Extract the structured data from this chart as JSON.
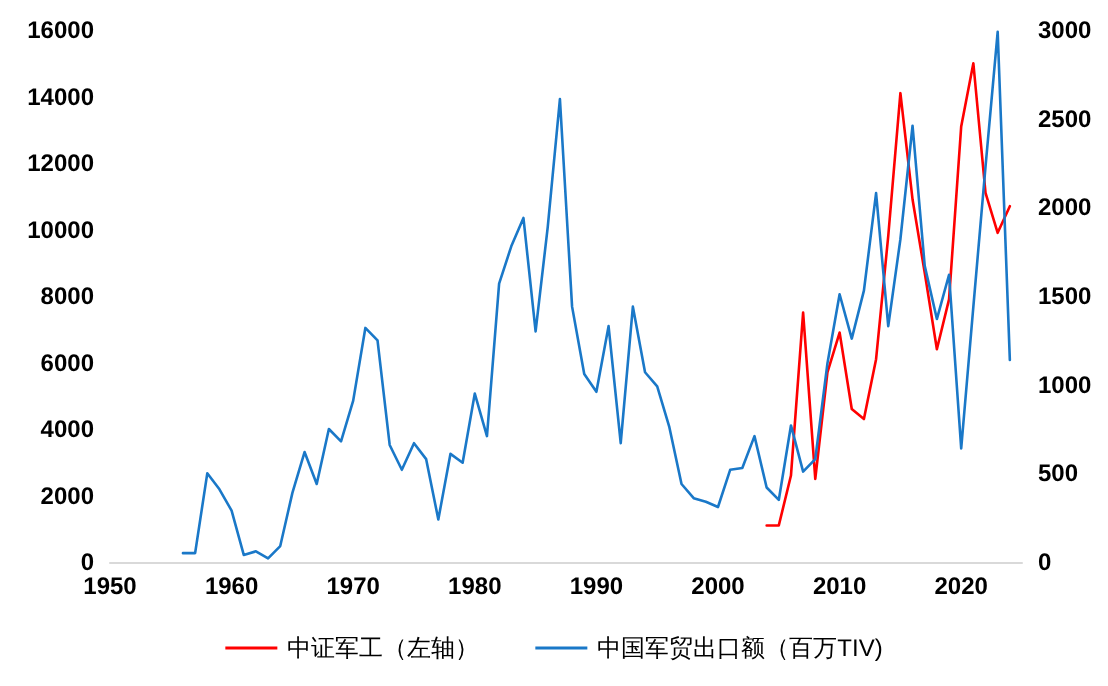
{
  "chart_data": {
    "type": "line",
    "series": [
      {
        "name": "中证军工（左轴）",
        "color": "#ff0000",
        "x": [
          2004,
          2005,
          2006,
          2007,
          2008,
          2009,
          2010,
          2011,
          2012,
          2013,
          2014,
          2015,
          2016,
          2017,
          2018,
          2019,
          2020,
          2021,
          2022,
          2023,
          2024
        ],
        "values": [
          1100,
          1100,
          2600,
          7500,
          2500,
          5700,
          6900,
          4600,
          4300,
          6100,
          9800,
          14100,
          10900,
          8700,
          6400,
          7900,
          13100,
          15000,
          11100,
          9900,
          10700
        ]
      },
      {
        "name": "中国军贸出口额（百万TIV)",
        "color": "#1a78c8",
        "axis": "y2",
        "x": [
          1956,
          1957,
          1958,
          1959,
          1960,
          1961,
          1962,
          1963,
          1964,
          1965,
          1966,
          1967,
          1968,
          1969,
          1970,
          1971,
          1972,
          1973,
          1974,
          1975,
          1976,
          1977,
          1978,
          1979,
          1980,
          1981,
          1982,
          1983,
          1984,
          1985,
          1986,
          1987,
          1988,
          1989,
          1990,
          1991,
          1992,
          1993,
          1994,
          1995,
          1996,
          1997,
          1998,
          1999,
          2000,
          2001,
          2002,
          2003,
          2004,
          2005,
          2006,
          2007,
          2008,
          2009,
          2010,
          2011,
          2012,
          2013,
          2014,
          2015,
          2016,
          2017,
          2018,
          2019,
          2020,
          2021,
          2022,
          2023,
          2024
        ],
        "values": [
          50,
          50,
          500,
          410,
          290,
          40,
          60,
          20,
          90,
          390,
          620,
          440,
          750,
          680,
          910,
          1320,
          1250,
          660,
          520,
          670,
          580,
          240,
          610,
          560,
          950,
          710,
          1570,
          1780,
          1940,
          1300,
          1890,
          2610,
          1440,
          1060,
          960,
          1330,
          670,
          1440,
          1070,
          990,
          760,
          440,
          360,
          340,
          310,
          520,
          530,
          710,
          420,
          350,
          770,
          510,
          580,
          1120,
          1510,
          1260,
          1530,
          2080,
          1330,
          1820,
          2460,
          1670,
          1370,
          1620,
          640,
          1440,
          2230,
          2990,
          1140
        ]
      }
    ],
    "xticks": [
      1950,
      1960,
      1970,
      1980,
      1990,
      2000,
      2010,
      2020
    ],
    "xlim": [
      1950,
      2025
    ],
    "ylim": [
      0,
      16000
    ],
    "yticks": [
      0,
      2000,
      4000,
      6000,
      8000,
      10000,
      12000,
      14000,
      16000
    ],
    "y2lim": [
      0,
      3000
    ],
    "y2ticks": [
      0,
      500,
      1000,
      1500,
      2000,
      2500,
      3000
    ],
    "grid": false,
    "legend": "bottom",
    "marker": "none",
    "line_style": "solid"
  }
}
